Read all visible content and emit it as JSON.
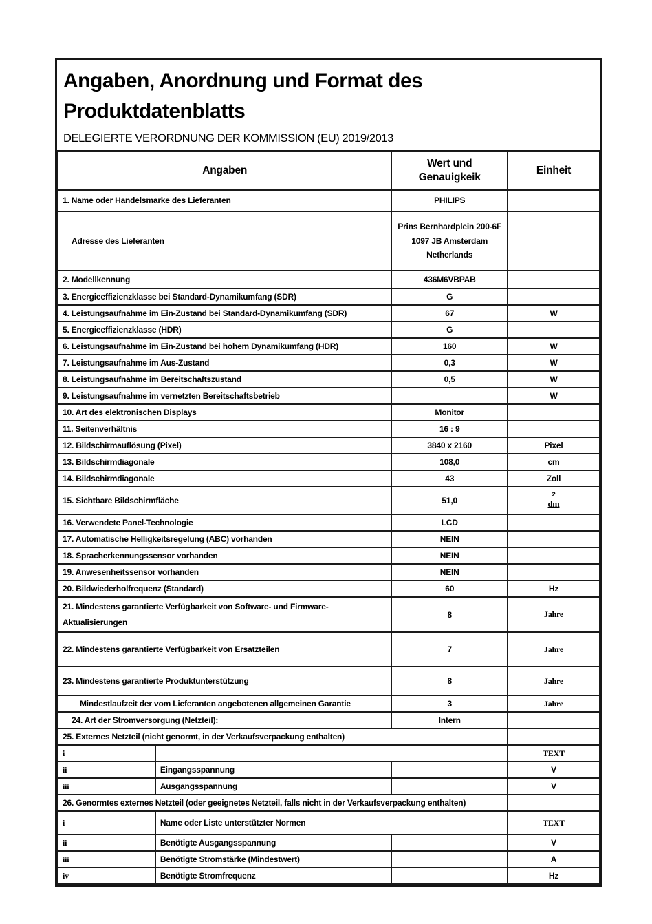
{
  "page": {
    "title": "Angaben, Anordnung und Format des Produktdatenblatts",
    "subtitle": "DELEGIERTE VERORDNUNG DER KOMMISSION (EU) 2019/2013"
  },
  "table": {
    "headers": {
      "angaben": "Angaben",
      "wert": "Wert und Genauigkeik",
      "einheit": "Einheit"
    },
    "rows": [
      {
        "type": "row",
        "label": "1. Name oder Handelsmarke des Lieferanten",
        "value": "PHILIPS",
        "unit": ""
      },
      {
        "type": "row",
        "label": "Adresse des Lieferanten",
        "indent": 1,
        "value_lines": [
          "Prins Bernhardplein 200-6F",
          "1097 JB Amsterdam",
          "Netherlands"
        ],
        "unit": ""
      },
      {
        "type": "row",
        "label": "2. Modellkennung",
        "value": "436M6VBPAB",
        "unit": ""
      },
      {
        "type": "row",
        "label": "3. Energieeffizienzklasse bei Standard-Dynamikumfang (SDR)",
        "value": "G",
        "unit": ""
      },
      {
        "type": "row",
        "label": "4. Leistungsaufnahme im Ein-Zustand bei Standard-Dynamikumfang (SDR)",
        "value": "67",
        "unit": "W"
      },
      {
        "type": "row",
        "label": "5. Energieeffizienzklasse (HDR)",
        "value": "G",
        "unit": ""
      },
      {
        "type": "row",
        "label": "6. Leistungsaufnahme im Ein-Zustand bei hohem Dynamikumfang (HDR)",
        "value": "160",
        "unit": "W"
      },
      {
        "type": "row",
        "label": "7. Leistungsaufnahme im Aus-Zustand",
        "value": "0,3",
        "unit": "W"
      },
      {
        "type": "row",
        "label": "8. Leistungsaufnahme im Bereitschaftszustand",
        "value": "0,5",
        "unit": "W"
      },
      {
        "type": "row",
        "label": "9. Leistungsaufnahme im vernetzten Bereitschaftsbetrieb",
        "value": "",
        "unit": "W"
      },
      {
        "type": "row",
        "label": "10. Art des elektronischen Displays",
        "value": "Monitor",
        "unit": ""
      },
      {
        "type": "row",
        "label": "11. Seitenverhältnis",
        "value": "16 : 9",
        "unit": ""
      },
      {
        "type": "row",
        "label": "12. Bildschirmauflösung (Pixel)",
        "value": "3840 x 2160",
        "unit": "Pixel"
      },
      {
        "type": "row",
        "label": "13. Bildschirmdiagonale",
        "value": "108,0",
        "unit": "cm"
      },
      {
        "type": "row",
        "label": "14. Bildschirmdiagonale",
        "value": "43",
        "unit": "Zoll"
      },
      {
        "type": "row",
        "label": "15. Sichtbare Bildschirmfläche",
        "value": "51,0",
        "unit_lines": [
          "2",
          "dm"
        ]
      },
      {
        "type": "row",
        "label": "16. Verwendete Panel-Technologie",
        "value": "LCD",
        "unit": ""
      },
      {
        "type": "row",
        "label": "17. Automatische Helligkeitsregelung (ABC) vorhanden",
        "value": "NEIN",
        "unit": ""
      },
      {
        "type": "row",
        "label": "18. Spracherkennungssensor vorhanden",
        "value": "NEIN",
        "unit": ""
      },
      {
        "type": "row",
        "label": "19. Anwesenheitssensor vorhanden",
        "value": "NEIN",
        "unit": ""
      },
      {
        "type": "row",
        "label": "20. Bildwiederholfrequenz (Standard)",
        "value": "60",
        "unit": "Hz"
      },
      {
        "type": "row",
        "label_lines": [
          "21.  Mindestens garantierte Verfügbarkeit von Software- und Firmware-",
          "Aktualisierungen"
        ],
        "value": "8",
        "unit": "Jahre"
      },
      {
        "type": "row",
        "label": "22. Mindestens garantierte Verfügbarkeit von Ersatzteilen",
        "value": "7",
        "unit": "Jahre"
      },
      {
        "type": "row",
        "label": "23. Mindestens garantierte Produktunterstützung",
        "value": "8",
        "unit": "Jahre"
      },
      {
        "type": "row",
        "label": "Mindestlaufzeit der vom Lieferanten angebotenen allgemeinen Garantie",
        "indent": 2,
        "value": "3",
        "unit": "Jahre"
      },
      {
        "type": "row",
        "label": "24. Art der Stromversorgung (Netzteil):",
        "indent": 1,
        "value": "Intern",
        "unit": ""
      },
      {
        "type": "span",
        "label": "25. Externes Netzteil (nicht genormt, in der Verkaufsverpackung enthalten)",
        "unit": ""
      },
      {
        "type": "subwide",
        "roman": "i",
        "label": "",
        "unit": "TEXT"
      },
      {
        "type": "sub",
        "roman": "ii",
        "label": "Eingangsspannung",
        "value": "",
        "unit": "V"
      },
      {
        "type": "sub",
        "roman": "iii",
        "label": "Ausgangsspannung",
        "value": "",
        "unit": "V"
      },
      {
        "type": "span",
        "label": "26. Genormtes externes Netzteil (oder geeignetes Netzteil, falls nicht in der Verkaufsverpackung enthalten)",
        "unit": ""
      },
      {
        "type": "subwide",
        "roman": "i",
        "label": "Name oder Liste unterstützter Normen",
        "unit": "TEXT"
      },
      {
        "type": "sub",
        "roman": "ii",
        "label": "Benötigte Ausgangsspannung",
        "value": "",
        "unit": "V"
      },
      {
        "type": "sub",
        "roman": "iii",
        "label": "Benötigte Stromstärke (Mindestwert)",
        "value": "",
        "unit": "A"
      },
      {
        "type": "sub",
        "roman": "iv",
        "label": "Benötigte Stromfrequenz",
        "value": "",
        "unit": "Hz"
      }
    ]
  }
}
